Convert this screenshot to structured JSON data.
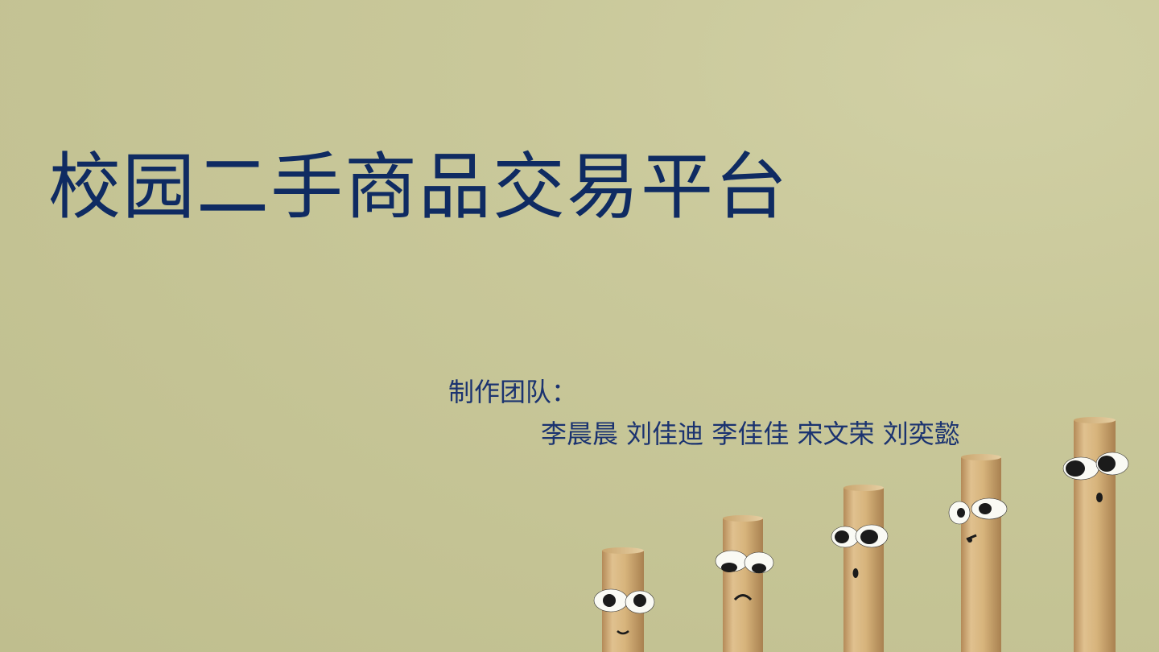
{
  "slide": {
    "title": "校园二手商品交易平台",
    "team_label": "制作团队：",
    "team_members": "李晨晨  刘佳迪 李佳佳  宋文荣  刘奕懿"
  },
  "colors": {
    "background": "#c9c89a",
    "text": "#0f2b62",
    "stick": "#d8b57f"
  },
  "decoration": "sticks-with-faces"
}
